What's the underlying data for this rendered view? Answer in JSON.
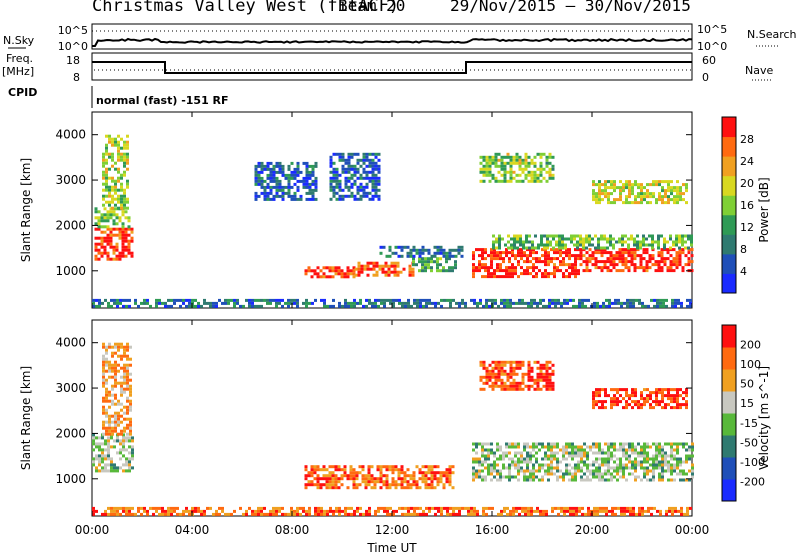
{
  "header": {
    "title": "Christmas Valley West (fitACF)",
    "beam": "Beam 20",
    "dates": "29/Nov/2015 – 30/Nov/2015"
  },
  "top_panels": {
    "nsky_label": "N.Sky",
    "nsearch_label": "N.Search",
    "nsky_ticks": [
      "10^5",
      "10^0"
    ],
    "nsearch_ticks": [
      "10^5",
      "10^0"
    ],
    "freq_label": "Freq.",
    "freq_unit": "[MHz]",
    "freq_ticks": [
      "18",
      "8"
    ],
    "nave_label": "Nave",
    "nave_ticks": [
      "60",
      "0"
    ],
    "cpid_label": "CPID",
    "cpid_value": "normal (fast) -151 RF"
  },
  "chart_data": [
    {
      "type": "heatmap",
      "name": "power",
      "ylabel": "Slant Range [km]",
      "xlabel": "",
      "x_ticks": [
        "00:00",
        "04:00",
        "08:00",
        "12:00",
        "16:00",
        "20:00",
        "00:00"
      ],
      "y_ticks": [
        "1000",
        "2000",
        "3000",
        "4000"
      ],
      "ylim": [
        180,
        4500
      ],
      "xlim_hours": [
        0,
        24
      ],
      "colorbar": {
        "label": "Power [dB]",
        "ticks": [
          "28",
          "24",
          "20",
          "16",
          "12",
          "8",
          "4"
        ],
        "colors": [
          "#1a2bff",
          "#1f4fb8",
          "#2f7a70",
          "#2f9a55",
          "#7fcf35",
          "#d8d820",
          "#f0a020",
          "#ff6a10",
          "#ff1010"
        ]
      },
      "regions": [
        {
          "t0": 0.1,
          "t1": 1.6,
          "r0": 1250,
          "r1": 1950,
          "level": 0.92
        },
        {
          "t0": 0.1,
          "t1": 1.5,
          "r0": 1950,
          "r1": 2400,
          "level": 0.5
        },
        {
          "t0": 0.4,
          "t1": 1.4,
          "r0": 2400,
          "r1": 4000,
          "level": 0.55
        },
        {
          "t0": 8.5,
          "t1": 10.5,
          "r0": 850,
          "r1": 1100,
          "level": 0.92
        },
        {
          "t0": 10.5,
          "t1": 12.8,
          "r0": 900,
          "r1": 1200,
          "level": 0.85
        },
        {
          "t0": 12.8,
          "t1": 14.5,
          "r0": 1000,
          "r1": 1300,
          "level": 0.4
        },
        {
          "t0": 11.5,
          "t1": 14.8,
          "r0": 1300,
          "r1": 1550,
          "level": 0.25
        },
        {
          "t0": 15.2,
          "t1": 19.5,
          "r0": 900,
          "r1": 1500,
          "level": 0.95
        },
        {
          "t0": 19.5,
          "t1": 24.0,
          "r0": 1000,
          "r1": 1500,
          "level": 0.93
        },
        {
          "t0": 16.0,
          "t1": 24.0,
          "r0": 1500,
          "r1": 1800,
          "level": 0.45
        },
        {
          "t0": 15.5,
          "t1": 18.5,
          "r0": 3000,
          "r1": 3600,
          "level": 0.5
        },
        {
          "t0": 6.5,
          "t1": 9.0,
          "r0": 2600,
          "r1": 3400,
          "level": 0.2
        },
        {
          "t0": 9.5,
          "t1": 11.5,
          "r0": 2600,
          "r1": 3600,
          "level": 0.2
        },
        {
          "t0": 20.0,
          "t1": 23.8,
          "r0": 2500,
          "r1": 3000,
          "level": 0.6
        },
        {
          "t0": 0.0,
          "t1": 24.0,
          "r0": 200,
          "r1": 380,
          "level": 0.25
        }
      ]
    },
    {
      "type": "heatmap",
      "name": "velocity",
      "ylabel": "Slant Range [km]",
      "xlabel": "Time UT",
      "x_ticks": [
        "00:00",
        "04:00",
        "08:00",
        "12:00",
        "16:00",
        "20:00",
        "00:00"
      ],
      "y_ticks": [
        "1000",
        "2000",
        "3000",
        "4000"
      ],
      "ylim": [
        180,
        4500
      ],
      "xlim_hours": [
        0,
        24
      ],
      "colorbar": {
        "label": "Velocity [m s^-1]",
        "ticks": [
          "200",
          "100",
          "50",
          "15",
          "-15",
          "-50",
          "-100",
          "-200"
        ],
        "colors": [
          "#1a2bff",
          "#1f4fb8",
          "#2f7a70",
          "#58b83a",
          "#c8c8c0",
          "#f0a020",
          "#ff6a10",
          "#ff1010"
        ]
      },
      "regions": [
        {
          "t0": 0.0,
          "t1": 1.6,
          "r0": 1200,
          "r1": 2000,
          "level": 0.5
        },
        {
          "t0": 0.4,
          "t1": 1.5,
          "r0": 2000,
          "r1": 4000,
          "level": 0.7
        },
        {
          "t0": 8.5,
          "t1": 14.5,
          "r0": 800,
          "r1": 1300,
          "level": 0.8
        },
        {
          "t0": 15.2,
          "t1": 24.0,
          "r0": 1000,
          "r1": 1800,
          "level": 0.5
        },
        {
          "t0": 15.5,
          "t1": 18.5,
          "r0": 3000,
          "r1": 3600,
          "level": 0.9
        },
        {
          "t0": 20.0,
          "t1": 23.8,
          "r0": 2600,
          "r1": 3000,
          "level": 0.92
        },
        {
          "t0": 0.0,
          "t1": 24.0,
          "r0": 200,
          "r1": 380,
          "level": 0.8
        }
      ]
    }
  ]
}
